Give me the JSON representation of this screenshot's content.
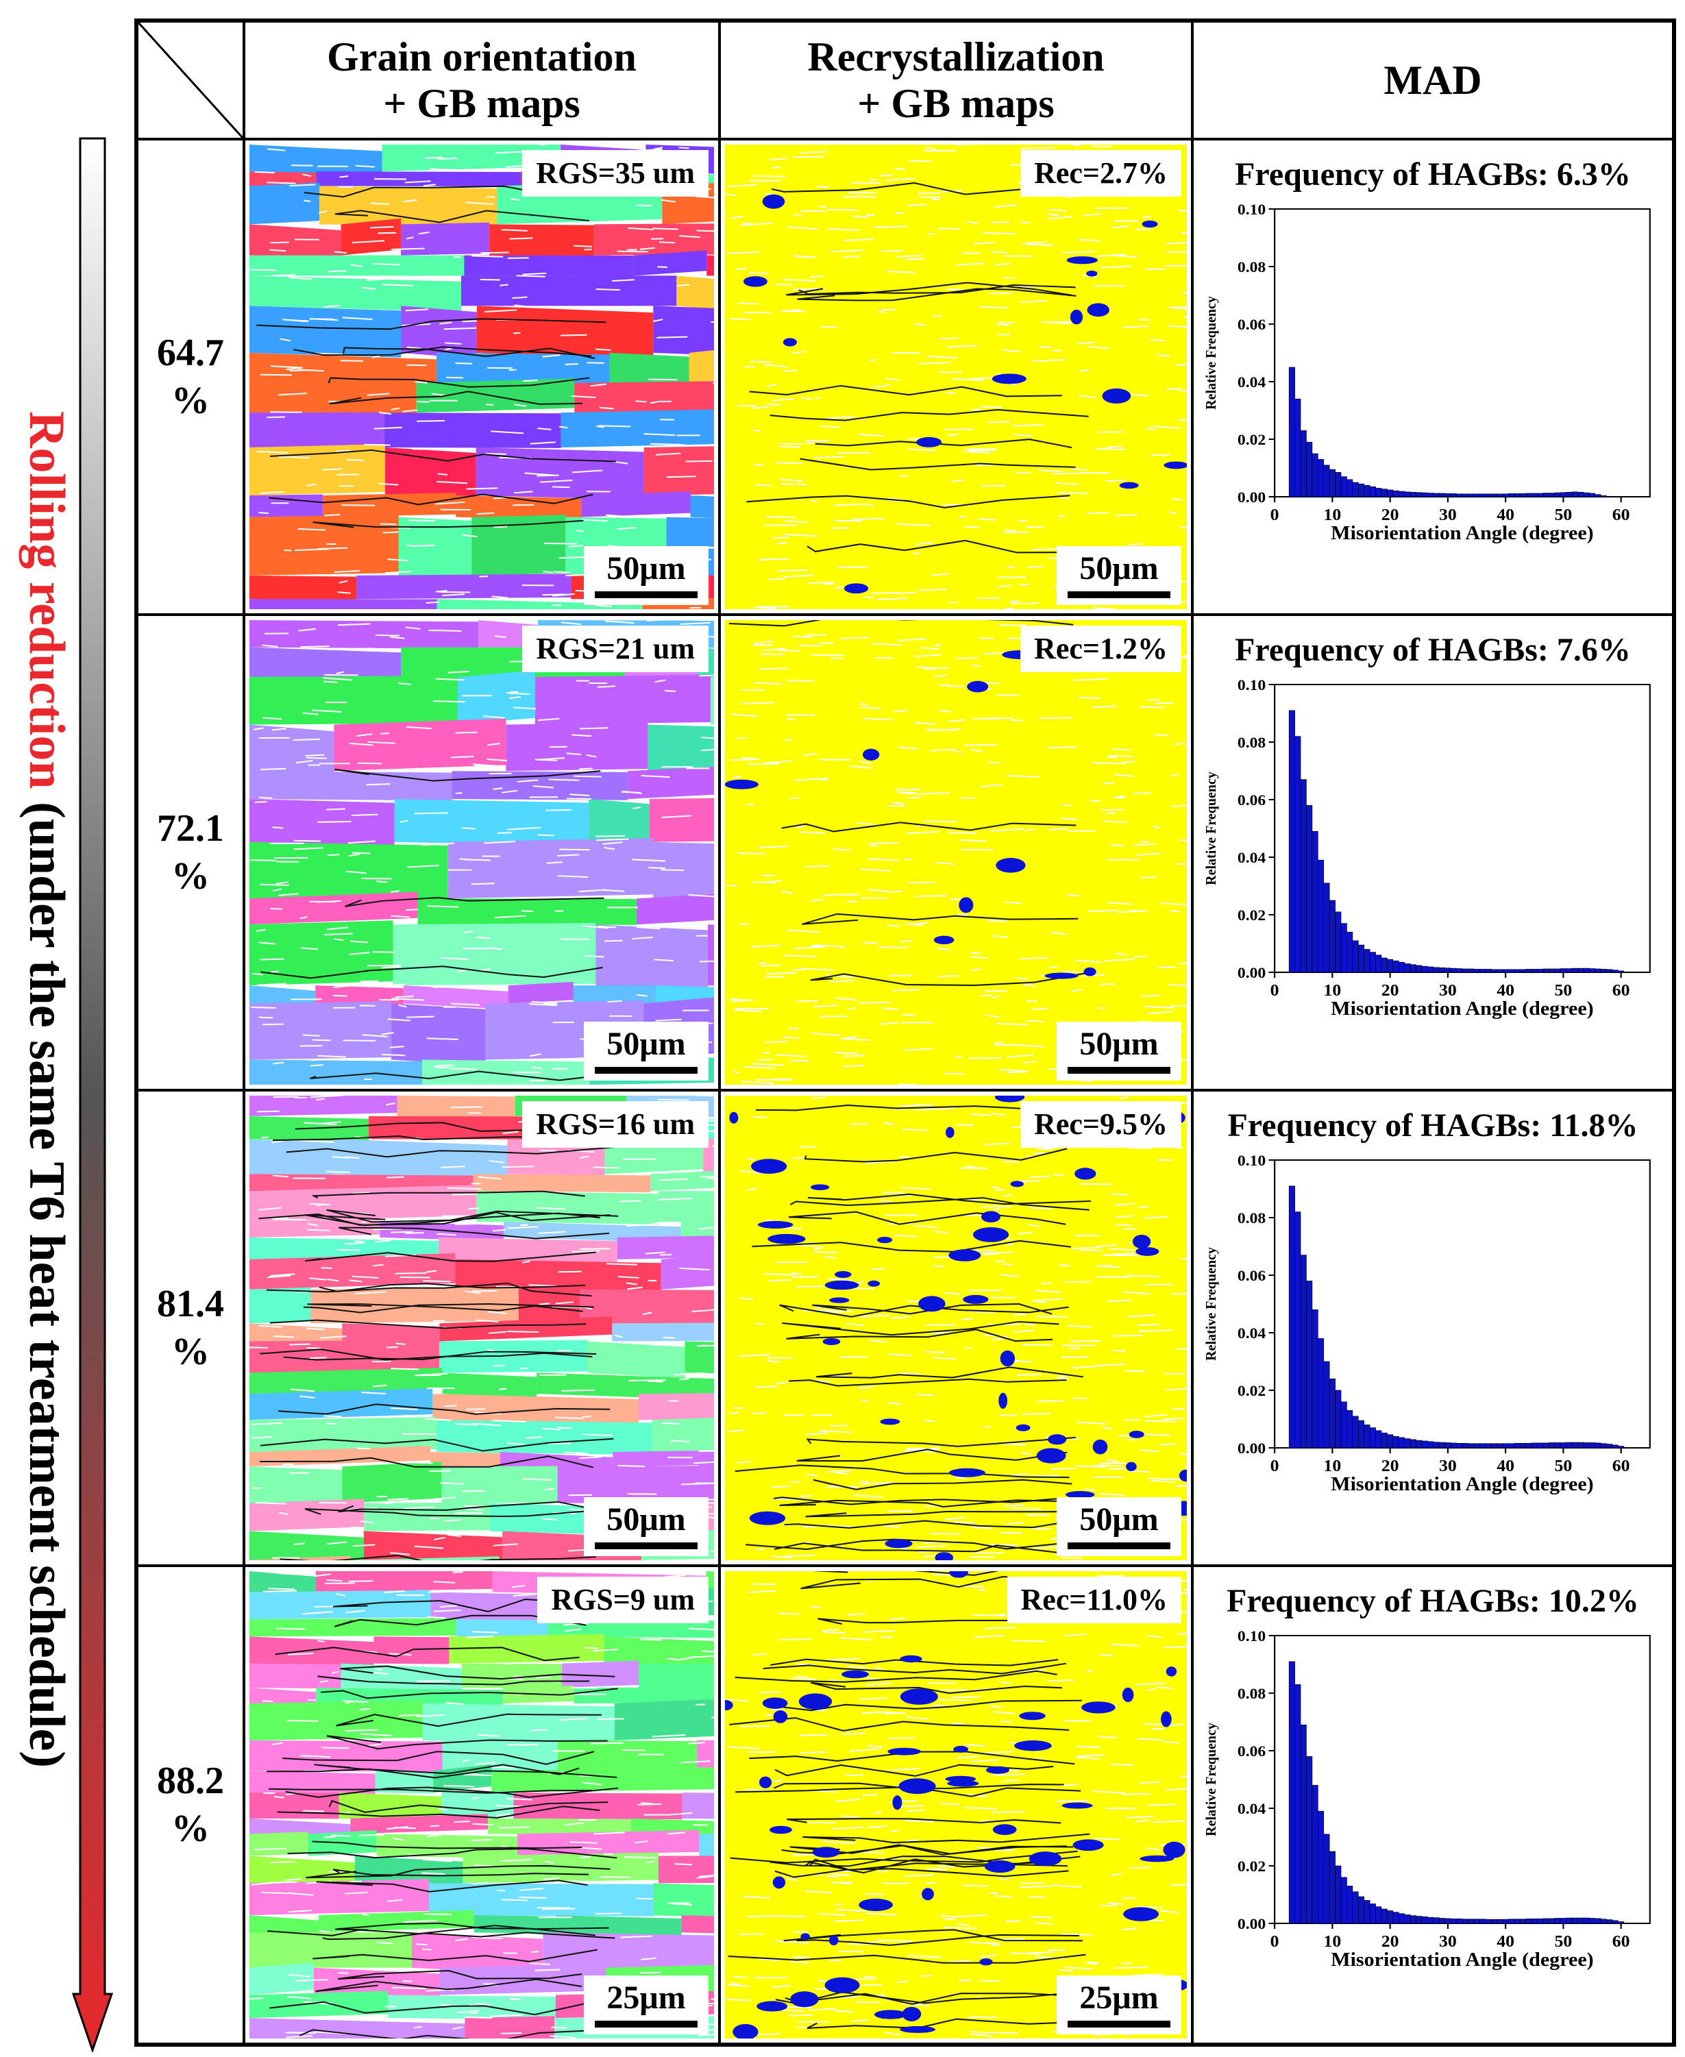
{
  "side": {
    "label_red": "Rolling reduction",
    "label_black": " (under the same T6 heat treatment schedule)"
  },
  "header": {
    "col1": [
      "Grain orientation",
      "+ GB maps"
    ],
    "col2": [
      "Recrystallization",
      "+ GB maps"
    ],
    "col3": "MAD"
  },
  "colors": {
    "recrystallized": "#0a14d8",
    "deformed": "#ffff00",
    "arrow_top": "#ffffff",
    "arrow_mid": "#555555",
    "arrow_bottom": "#e8282c",
    "bar_fill": "#0c12c8",
    "label_red": "#e8282c"
  },
  "rows": [
    {
      "reduction": [
        "64.7",
        "%"
      ],
      "rgs": "RGS=35 um",
      "rec": "Rec=2.7%",
      "rec_fraction": 0.027,
      "scale": "50μm",
      "hagb": "Frequency of HAGBs: 6.3%"
    },
    {
      "reduction": [
        "72.1",
        "%"
      ],
      "rgs": "RGS=21 um",
      "rec": "Rec=1.2%",
      "rec_fraction": 0.012,
      "scale": "50μm",
      "hagb": "Frequency of HAGBs: 7.6%"
    },
    {
      "reduction": [
        "81.4",
        "%"
      ],
      "rgs": "RGS=16 um",
      "rec": "Rec=9.5%",
      "rec_fraction": 0.095,
      "scale": "50μm",
      "hagb": "Frequency of HAGBs: 11.8%"
    },
    {
      "reduction": [
        "88.2",
        "%"
      ],
      "rgs": "RGS=9 um",
      "rec": "Rec=11.0%",
      "rec_fraction": 0.11,
      "scale": "25μm",
      "hagb": "Frequency of HAGBs: 10.2%"
    }
  ],
  "chart_data": [
    {
      "type": "bar",
      "title": "Frequency of HAGBs: 6.3%",
      "xlabel": "Misorientation Angle (degree)",
      "ylabel": "Relative Frequency",
      "xlim": [
        0,
        65
      ],
      "ylim": [
        0,
        0.1
      ],
      "xticks": [
        "0",
        "10",
        "20",
        "30",
        "40",
        "50",
        "60"
      ],
      "yticks": [
        "0.00",
        "0.02",
        "0.04",
        "0.06",
        "0.08",
        "0.10"
      ],
      "bin_width": 1,
      "x": [
        3,
        4,
        5,
        6,
        7,
        8,
        9,
        10,
        11,
        12,
        13,
        14,
        15,
        16,
        17,
        18,
        19,
        20,
        21,
        22,
        23,
        24,
        25,
        26,
        27,
        28,
        29,
        30,
        31,
        32,
        33,
        34,
        35,
        36,
        37,
        38,
        39,
        40,
        41,
        42,
        43,
        44,
        45,
        46,
        47,
        48,
        49,
        50,
        51,
        52,
        53,
        54,
        55,
        56,
        57
      ],
      "values": [
        0.045,
        0.034,
        0.023,
        0.019,
        0.015,
        0.013,
        0.011,
        0.0095,
        0.0085,
        0.007,
        0.006,
        0.005,
        0.0045,
        0.004,
        0.0035,
        0.003,
        0.0027,
        0.0024,
        0.0021,
        0.0019,
        0.0017,
        0.0016,
        0.0015,
        0.0014,
        0.0013,
        0.0012,
        0.0012,
        0.0011,
        0.0011,
        0.001,
        0.001,
        0.001,
        0.001,
        0.001,
        0.001,
        0.001,
        0.001,
        0.001,
        0.0011,
        0.0011,
        0.0011,
        0.0012,
        0.0012,
        0.0012,
        0.0013,
        0.0013,
        0.0014,
        0.0015,
        0.0016,
        0.0017,
        0.0016,
        0.0014,
        0.0012,
        0.0008,
        0.0004
      ]
    },
    {
      "type": "bar",
      "title": "Frequency of HAGBs: 7.6%",
      "xlabel": "Misorientation Angle (degree)",
      "ylabel": "Relative Frequency",
      "xlim": [
        0,
        65
      ],
      "ylim": [
        0,
        0.1
      ],
      "xticks": [
        "0",
        "10",
        "20",
        "30",
        "40",
        "50",
        "60"
      ],
      "yticks": [
        "0.00",
        "0.02",
        "0.04",
        "0.06",
        "0.08",
        "0.10"
      ],
      "bin_width": 1,
      "x": [
        3,
        4,
        5,
        6,
        7,
        8,
        9,
        10,
        11,
        12,
        13,
        14,
        15,
        16,
        17,
        18,
        19,
        20,
        21,
        22,
        23,
        24,
        25,
        26,
        27,
        28,
        29,
        30,
        31,
        32,
        33,
        34,
        35,
        36,
        37,
        38,
        39,
        40,
        41,
        42,
        43,
        44,
        45,
        46,
        47,
        48,
        49,
        50,
        51,
        52,
        53,
        54,
        55,
        56,
        57,
        58,
        59,
        60
      ],
      "values": [
        0.091,
        0.082,
        0.067,
        0.058,
        0.049,
        0.039,
        0.031,
        0.025,
        0.021,
        0.017,
        0.014,
        0.011,
        0.0095,
        0.008,
        0.007,
        0.006,
        0.005,
        0.0045,
        0.004,
        0.0035,
        0.003,
        0.0027,
        0.0024,
        0.0021,
        0.0019,
        0.0017,
        0.0016,
        0.0015,
        0.0014,
        0.0013,
        0.0012,
        0.0012,
        0.0011,
        0.0011,
        0.0011,
        0.001,
        0.001,
        0.001,
        0.001,
        0.001,
        0.001,
        0.0011,
        0.0011,
        0.0011,
        0.0012,
        0.0012,
        0.0012,
        0.0013,
        0.0013,
        0.0014,
        0.0014,
        0.0014,
        0.0013,
        0.0012,
        0.0011,
        0.001,
        0.0008,
        0.0005
      ]
    },
    {
      "type": "bar",
      "title": "Frequency of HAGBs: 11.8%",
      "xlabel": "Misorientation Angle (degree)",
      "ylabel": "Relative Frequency",
      "xlim": [
        0,
        65
      ],
      "ylim": [
        0,
        0.1
      ],
      "xticks": [
        "0",
        "10",
        "20",
        "30",
        "40",
        "50",
        "60"
      ],
      "yticks": [
        "0.00",
        "0.02",
        "0.04",
        "0.06",
        "0.08",
        "0.10"
      ],
      "bin_width": 1,
      "x": [
        3,
        4,
        5,
        6,
        7,
        8,
        9,
        10,
        11,
        12,
        13,
        14,
        15,
        16,
        17,
        18,
        19,
        20,
        21,
        22,
        23,
        24,
        25,
        26,
        27,
        28,
        29,
        30,
        31,
        32,
        33,
        34,
        35,
        36,
        37,
        38,
        39,
        40,
        41,
        42,
        43,
        44,
        45,
        46,
        47,
        48,
        49,
        50,
        51,
        52,
        53,
        54,
        55,
        56,
        57,
        58,
        59,
        60
      ],
      "values": [
        0.091,
        0.082,
        0.067,
        0.058,
        0.048,
        0.038,
        0.03,
        0.024,
        0.02,
        0.016,
        0.013,
        0.011,
        0.0095,
        0.008,
        0.007,
        0.006,
        0.0052,
        0.0046,
        0.004,
        0.0036,
        0.0032,
        0.0029,
        0.0026,
        0.0024,
        0.0022,
        0.002,
        0.0019,
        0.0018,
        0.0017,
        0.0016,
        0.0016,
        0.0015,
        0.0015,
        0.0015,
        0.0015,
        0.0015,
        0.0015,
        0.0015,
        0.0015,
        0.0016,
        0.0016,
        0.0016,
        0.0017,
        0.0017,
        0.0017,
        0.0018,
        0.0018,
        0.0018,
        0.0019,
        0.0019,
        0.0019,
        0.0018,
        0.0018,
        0.0017,
        0.0015,
        0.0013,
        0.001,
        0.0006
      ]
    },
    {
      "type": "bar",
      "title": "Frequency of HAGBs: 10.2%",
      "xlabel": "Misorientation Angle (degree)",
      "ylabel": "Relative Frequency",
      "xlim": [
        0,
        65
      ],
      "ylim": [
        0,
        0.1
      ],
      "xticks": [
        "0",
        "10",
        "20",
        "30",
        "40",
        "50",
        "60"
      ],
      "yticks": [
        "0.00",
        "0.02",
        "0.04",
        "0.06",
        "0.08",
        "0.10"
      ],
      "bin_width": 1,
      "x": [
        3,
        4,
        5,
        6,
        7,
        8,
        9,
        10,
        11,
        12,
        13,
        14,
        15,
        16,
        17,
        18,
        19,
        20,
        21,
        22,
        23,
        24,
        25,
        26,
        27,
        28,
        29,
        30,
        31,
        32,
        33,
        34,
        35,
        36,
        37,
        38,
        39,
        40,
        41,
        42,
        43,
        44,
        45,
        46,
        47,
        48,
        49,
        50,
        51,
        52,
        53,
        54,
        55,
        56,
        57,
        58,
        59,
        60
      ],
      "values": [
        0.091,
        0.083,
        0.069,
        0.058,
        0.048,
        0.039,
        0.031,
        0.025,
        0.02,
        0.016,
        0.013,
        0.011,
        0.0093,
        0.008,
        0.0068,
        0.0058,
        0.005,
        0.0044,
        0.0039,
        0.0034,
        0.003,
        0.0027,
        0.0025,
        0.0023,
        0.0021,
        0.002,
        0.0018,
        0.0017,
        0.0016,
        0.0016,
        0.0015,
        0.0015,
        0.0015,
        0.0015,
        0.0014,
        0.0014,
        0.0014,
        0.0014,
        0.0015,
        0.0015,
        0.0015,
        0.0016,
        0.0016,
        0.0016,
        0.0017,
        0.0017,
        0.0018,
        0.0018,
        0.0019,
        0.0019,
        0.0019,
        0.0019,
        0.0018,
        0.0017,
        0.0015,
        0.0013,
        0.001,
        0.0006
      ]
    }
  ]
}
